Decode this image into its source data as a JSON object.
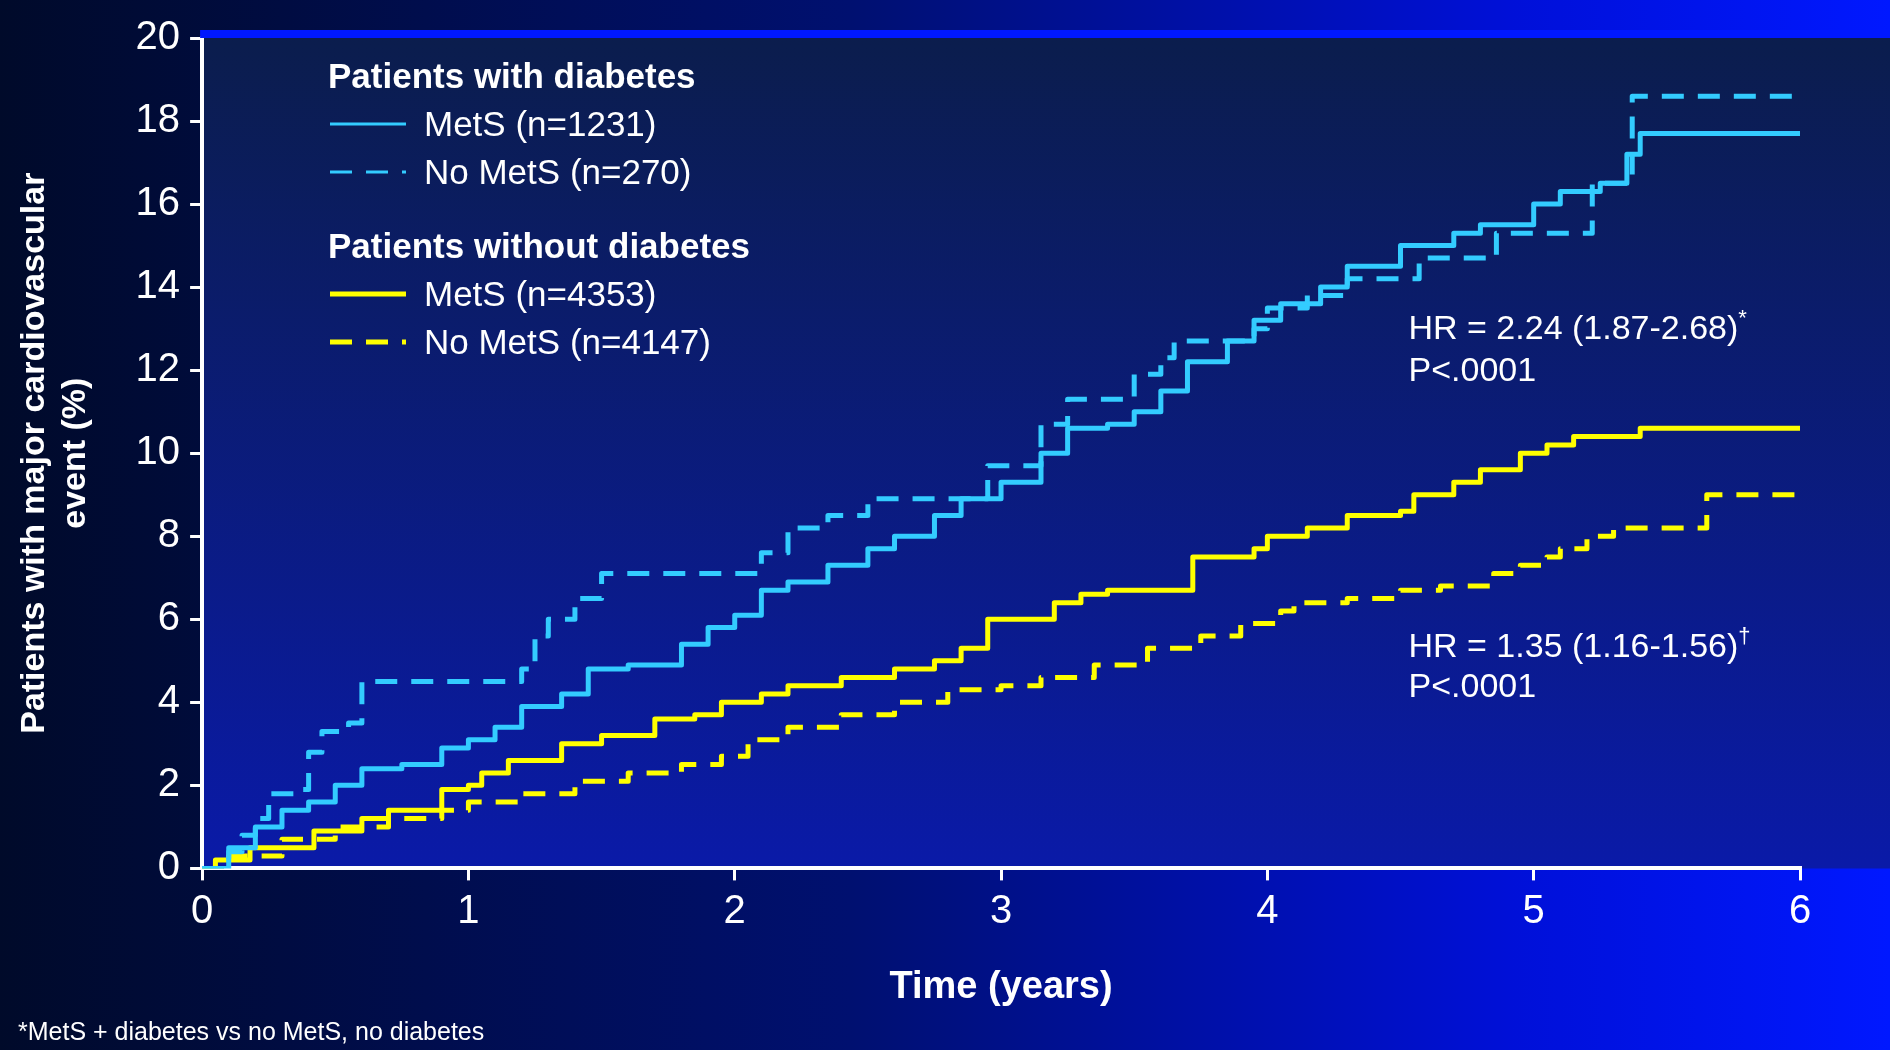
{
  "chart_data": {
    "type": "step",
    "xlabel": "Time (years)",
    "ylabel": "Patients with major cardiovascular event (%)",
    "xlim": [
      0,
      6
    ],
    "xticks": [
      0,
      1,
      2,
      3,
      4,
      5,
      6
    ],
    "ylim": [
      0,
      20
    ],
    "yticks": [
      0,
      2,
      4,
      6,
      8,
      10,
      12,
      14,
      16,
      18,
      20
    ],
    "grid": false,
    "legend": "top left",
    "marker": "none",
    "series": [
      {
        "name": "MetS (n=1231)",
        "color": "#33ccff",
        "line_style": "solid",
        "x": [
          0,
          0.1,
          0.2,
          0.3,
          0.4,
          0.5,
          0.6,
          0.75,
          0.9,
          1.0,
          1.1,
          1.2,
          1.35,
          1.45,
          1.6,
          1.8,
          1.9,
          2.0,
          2.1,
          2.2,
          2.35,
          2.5,
          2.6,
          2.75,
          2.85,
          3.0,
          3.15,
          3.25,
          3.4,
          3.5,
          3.6,
          3.7,
          3.85,
          3.95,
          4.05,
          4.2,
          4.3,
          4.5,
          4.7,
          4.8,
          5.0,
          5.1,
          5.25,
          5.35,
          5.4,
          6.0
        ],
        "values": [
          0,
          0.5,
          1.0,
          1.4,
          1.6,
          2.0,
          2.4,
          2.5,
          2.9,
          3.1,
          3.4,
          3.9,
          4.2,
          4.8,
          4.9,
          5.4,
          5.8,
          6.1,
          6.7,
          6.9,
          7.3,
          7.7,
          8.0,
          8.5,
          8.9,
          9.3,
          10.0,
          10.6,
          10.7,
          11.0,
          11.5,
          12.2,
          12.7,
          13.2,
          13.6,
          14.0,
          14.5,
          15.0,
          15.3,
          15.5,
          16.0,
          16.3,
          16.5,
          17.2,
          17.7,
          17.7
        ]
      },
      {
        "name": "No MetS (n=270)",
        "color": "#33ccff",
        "line_style": "dashed",
        "x": [
          0,
          0.1,
          0.15,
          0.2,
          0.25,
          0.35,
          0.4,
          0.45,
          0.55,
          0.6,
          1.2,
          1.25,
          1.3,
          1.4,
          1.5,
          2.05,
          2.1,
          2.2,
          2.35,
          2.5,
          2.95,
          3.15,
          3.25,
          3.5,
          3.6,
          3.65,
          3.95,
          4.0,
          4.15,
          4.3,
          4.57,
          4.86,
          5.22,
          5.37,
          6.0
        ],
        "values": [
          0,
          0.4,
          0.8,
          1.2,
          1.8,
          1.9,
          2.8,
          3.3,
          3.5,
          4.5,
          4.8,
          5.6,
          6.0,
          6.5,
          7.1,
          7.1,
          7.6,
          8.2,
          8.5,
          8.9,
          9.7,
          10.7,
          11.3,
          11.9,
          12.3,
          12.7,
          13.0,
          13.5,
          13.8,
          14.2,
          14.7,
          15.3,
          16.5,
          18.6,
          18.6
        ]
      },
      {
        "name": "MetS (n=4353)",
        "color": "#ffff00",
        "line_style": "solid",
        "x": [
          0,
          0.05,
          0.18,
          0.42,
          0.6,
          0.7,
          0.9,
          1.0,
          1.05,
          1.15,
          1.35,
          1.5,
          1.7,
          1.85,
          1.95,
          2.1,
          2.2,
          2.4,
          2.6,
          2.75,
          2.85,
          2.95,
          3.2,
          3.3,
          3.4,
          3.72,
          3.95,
          4.0,
          4.15,
          4.3,
          4.5,
          4.55,
          4.7,
          4.8,
          4.95,
          5.05,
          5.15,
          5.4,
          6.0
        ],
        "values": [
          0,
          0.2,
          0.5,
          0.9,
          1.2,
          1.4,
          1.9,
          2.0,
          2.3,
          2.6,
          3.0,
          3.2,
          3.6,
          3.7,
          4.0,
          4.2,
          4.4,
          4.6,
          4.8,
          5.0,
          5.3,
          6.0,
          6.4,
          6.6,
          6.7,
          7.5,
          7.7,
          8.0,
          8.2,
          8.5,
          8.6,
          9.0,
          9.3,
          9.6,
          10.0,
          10.2,
          10.4,
          10.6,
          10.6
        ]
      },
      {
        "name": "No MetS (n=4147)",
        "color": "#ffff00",
        "line_style": "dashed",
        "x": [
          0,
          0.1,
          0.3,
          0.5,
          0.7,
          0.9,
          1.0,
          1.2,
          1.4,
          1.6,
          1.8,
          1.95,
          2.05,
          2.2,
          2.4,
          2.6,
          2.8,
          3.0,
          3.15,
          3.35,
          3.55,
          3.75,
          3.9,
          4.05,
          4.1,
          4.3,
          4.5,
          4.65,
          4.85,
          4.95,
          5.05,
          5.1,
          5.2,
          5.3,
          5.65,
          6.0
        ],
        "values": [
          0,
          0.3,
          0.7,
          1.0,
          1.2,
          1.4,
          1.6,
          1.8,
          2.1,
          2.3,
          2.5,
          2.7,
          3.1,
          3.4,
          3.7,
          4.0,
          4.3,
          4.4,
          4.6,
          4.9,
          5.3,
          5.6,
          5.9,
          6.2,
          6.4,
          6.5,
          6.7,
          6.8,
          7.1,
          7.3,
          7.5,
          7.7,
          8.0,
          8.2,
          9.0,
          9.0
        ]
      }
    ],
    "annotations": [
      "Patients with diabetes",
      "Patients without diabetes",
      "*MetS + diabetes vs no MetS, no diabetes",
      "HR = 2.24 (1.87-2.68)$^{*}$",
      "P<.0001",
      "HR = 1.35 (1.16-1.56)$^{†}$",
      "P<.0001"
    ]
  }
}
